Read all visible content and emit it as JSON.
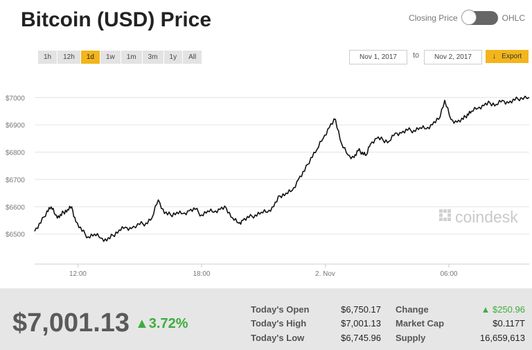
{
  "header": {
    "title": "Bitcoin (USD) Price",
    "toggle_left": "Closing Price",
    "toggle_right": "OHLC"
  },
  "controls": {
    "ranges": [
      "1h",
      "12h",
      "1d",
      "1w",
      "1m",
      "3m",
      "1y",
      "All"
    ],
    "active_range": "1d",
    "from_date": "Nov 1, 2017",
    "to_label": "to",
    "to_date": "Nov 2, 2017",
    "export_label": "Export"
  },
  "watermark": "coindesk",
  "colors": {
    "accent": "#f2b51c",
    "positive": "#3cae3c",
    "line": "#111111"
  },
  "chart_data": {
    "type": "line",
    "y_ticks": [
      "$7000",
      "$6900",
      "$6800",
      "$6700",
      "$6600",
      "$6500"
    ],
    "y_tick_values": [
      7000,
      6900,
      6800,
      6700,
      6600,
      6500
    ],
    "ylim": [
      6390,
      7040
    ],
    "x_ticks": [
      "12:00",
      "18:00",
      "2. Nov",
      "06:00"
    ],
    "x_tick_hours": [
      12,
      18,
      24,
      30
    ],
    "xlim": [
      9.9,
      33.9
    ],
    "grid": true,
    "series": [
      {
        "x": [
          9.9,
          10.2,
          10.5,
          10.7,
          10.9,
          11.1,
          11.3,
          11.5,
          11.7,
          11.9,
          12.2,
          12.5,
          12.8,
          13.1,
          13.4,
          13.7,
          14.0,
          14.3,
          14.6,
          15.0,
          15.3,
          15.6,
          15.9,
          16.2,
          16.5,
          16.8,
          17.1,
          17.4,
          17.7,
          18.0,
          18.3,
          18.6,
          18.9,
          19.2,
          19.5,
          19.8,
          20.0,
          20.3,
          20.6,
          20.9,
          21.2,
          21.5,
          21.8,
          22.1,
          22.4,
          22.7,
          23.0,
          23.3,
          23.6,
          23.9,
          24.2,
          24.5,
          24.8,
          25.1,
          25.4,
          25.6,
          25.8,
          26.0,
          26.2,
          26.5,
          26.8,
          27.1,
          27.4,
          27.7,
          28.0,
          28.3,
          28.6,
          28.9,
          29.2,
          29.5,
          29.8,
          30.1,
          30.4,
          30.7,
          30.9,
          31.1,
          31.4,
          31.7,
          32.0,
          32.3,
          32.6,
          32.9,
          33.2,
          33.5,
          33.9
        ],
        "y": [
          6510,
          6540,
          6585,
          6600,
          6570,
          6560,
          6580,
          6590,
          6600,
          6545,
          6510,
          6490,
          6500,
          6485,
          6475,
          6495,
          6515,
          6525,
          6520,
          6535,
          6540,
          6560,
          6625,
          6575,
          6570,
          6580,
          6575,
          6585,
          6590,
          6570,
          6585,
          6580,
          6590,
          6595,
          6560,
          6540,
          6550,
          6560,
          6570,
          6580,
          6580,
          6600,
          6640,
          6650,
          6660,
          6700,
          6730,
          6780,
          6810,
          6850,
          6890,
          6920,
          6830,
          6790,
          6780,
          6805,
          6800,
          6790,
          6830,
          6850,
          6845,
          6840,
          6870,
          6870,
          6880,
          6880,
          6890,
          6885,
          6900,
          6920,
          6990,
          6920,
          6910,
          6920,
          6940,
          6950,
          6960,
          6970,
          6980,
          6975,
          6990,
          6980,
          6990,
          7000,
          7001
        ]
      }
    ]
  },
  "footer": {
    "price": "$7,001.13",
    "change_pct": "▲3.72%",
    "stats": [
      {
        "label": "Today's Open",
        "value": "$6,750.17"
      },
      {
        "label": "Today's High",
        "value": "$7,001.13"
      },
      {
        "label": "Today's Low",
        "value": "$6,745.96"
      },
      {
        "label": "Change",
        "value": "▲ $250.96"
      },
      {
        "label": "Market Cap",
        "value": "$0.117T"
      },
      {
        "label": "Supply",
        "value": "16,659,613"
      }
    ]
  }
}
